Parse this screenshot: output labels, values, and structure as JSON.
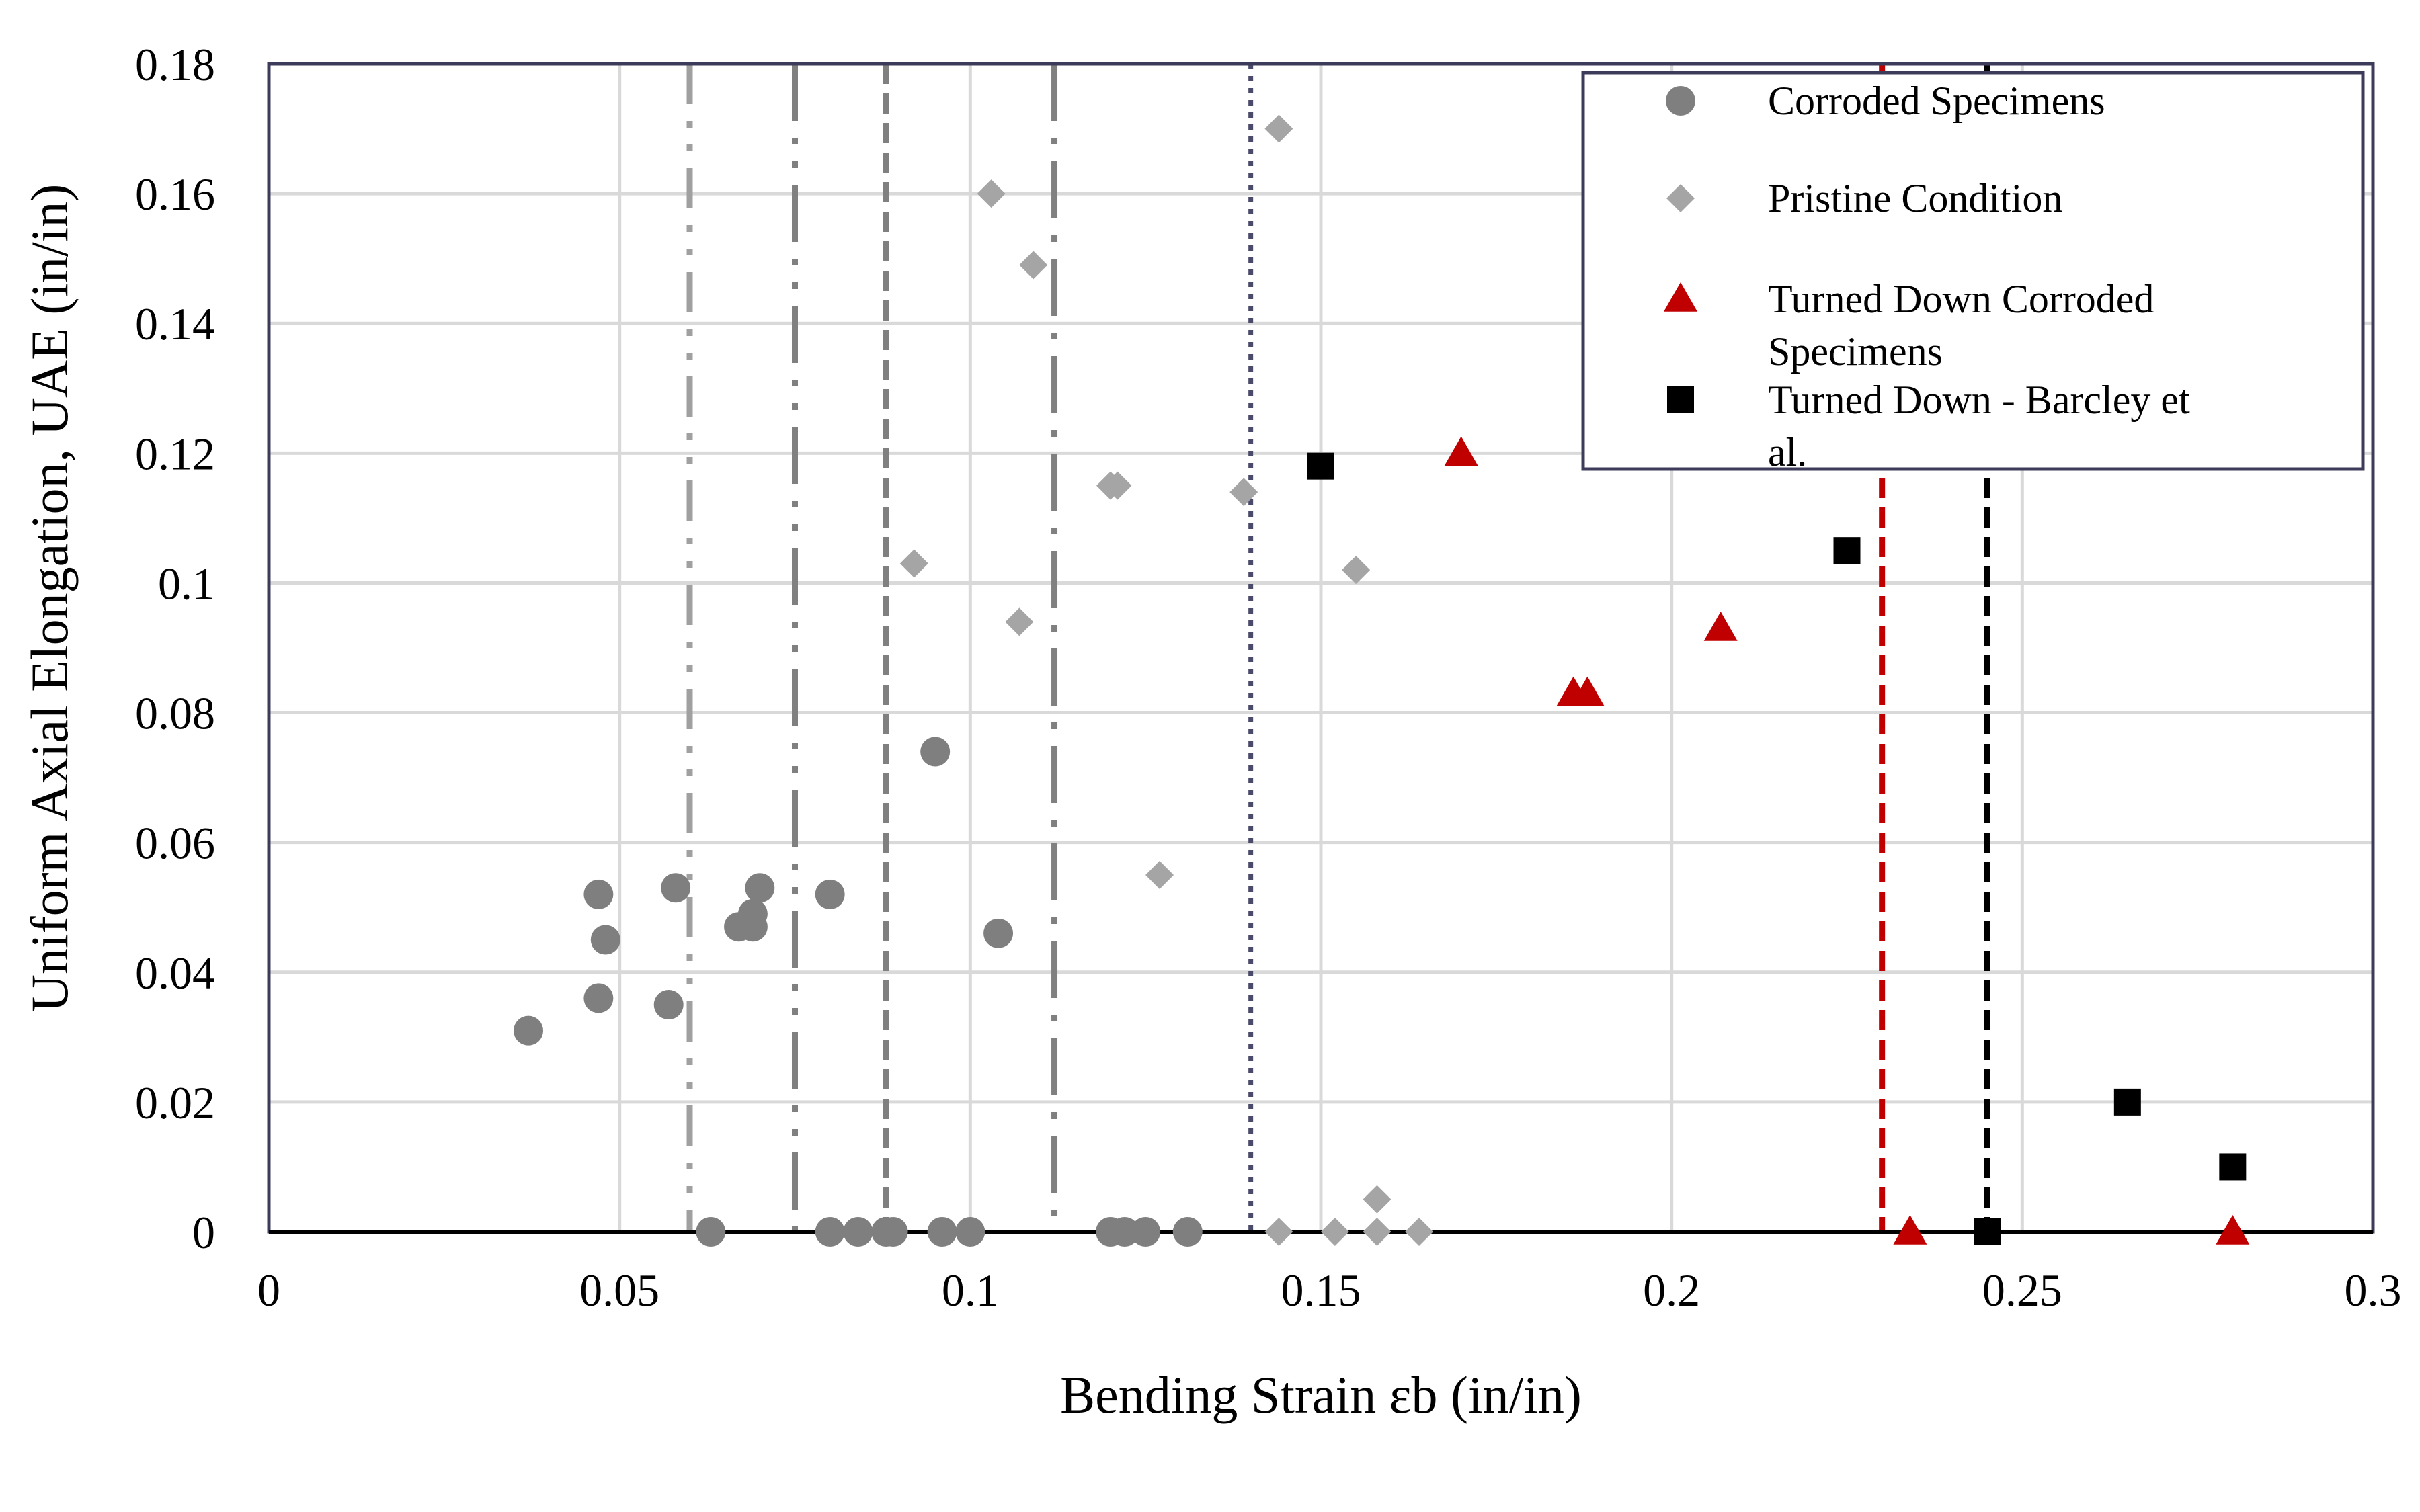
{
  "chart_data": {
    "type": "scatter",
    "xlabel": "Bending Strain εb (in/in)",
    "ylabel": "Uniform Axial Elongation, UAE (in/in)",
    "xlim": [
      0,
      0.3
    ],
    "ylim": [
      0,
      0.18
    ],
    "x_ticks": [
      "0",
      "0.05",
      "0.1",
      "0.15",
      "0.2",
      "0.25",
      "0.3"
    ],
    "y_ticks": [
      "0",
      "0.02",
      "0.04",
      "0.06",
      "0.08",
      "0.1",
      "0.12",
      "0.14",
      "0.16",
      "0.18"
    ],
    "grid": true,
    "legend_position": "top-right",
    "series": [
      {
        "name": "Corroded Specimens",
        "marker": "circle",
        "color": "#7f7f7f",
        "points": [
          [
            0.037,
            0.031
          ],
          [
            0.047,
            0.052
          ],
          [
            0.047,
            0.036
          ],
          [
            0.048,
            0.045
          ],
          [
            0.057,
            0.035
          ],
          [
            0.058,
            0.053
          ],
          [
            0.067,
            0.047
          ],
          [
            0.069,
            0.049
          ],
          [
            0.069,
            0.047
          ],
          [
            0.07,
            0.053
          ],
          [
            0.08,
            0.052
          ],
          [
            0.095,
            0.074
          ],
          [
            0.104,
            0.046
          ],
          [
            0.063,
            0.0
          ],
          [
            0.08,
            0.0
          ],
          [
            0.084,
            0.0
          ],
          [
            0.088,
            0.0
          ],
          [
            0.089,
            0.0
          ],
          [
            0.096,
            0.0
          ],
          [
            0.1,
            0.0
          ],
          [
            0.12,
            0.0
          ],
          [
            0.122,
            0.0
          ],
          [
            0.125,
            0.0
          ],
          [
            0.131,
            0.0
          ]
        ]
      },
      {
        "name": "Pristine Condition",
        "marker": "diamond",
        "color": "#a5a5a5",
        "points": [
          [
            0.092,
            0.103
          ],
          [
            0.103,
            0.16
          ],
          [
            0.107,
            0.094
          ],
          [
            0.109,
            0.149
          ],
          [
            0.12,
            0.115
          ],
          [
            0.121,
            0.115
          ],
          [
            0.127,
            0.055
          ],
          [
            0.139,
            0.114
          ],
          [
            0.144,
            0.17
          ],
          [
            0.155,
            0.102
          ],
          [
            0.158,
            0.005
          ],
          [
            0.144,
            0.0
          ],
          [
            0.152,
            0.0
          ],
          [
            0.158,
            0.0
          ],
          [
            0.164,
            0.0
          ]
        ]
      },
      {
        "name": "Turned Down Corroded Specimens",
        "marker": "triangle",
        "color": "#c00000",
        "points": [
          [
            0.17,
            0.12
          ],
          [
            0.186,
            0.083
          ],
          [
            0.188,
            0.083
          ],
          [
            0.207,
            0.093
          ],
          [
            0.234,
            0.0
          ],
          [
            0.28,
            0.0
          ]
        ]
      },
      {
        "name": "Turned Down - Barcley et al.",
        "marker": "square",
        "color": "#000000",
        "points": [
          [
            0.15,
            0.118
          ],
          [
            0.225,
            0.105
          ],
          [
            0.245,
            0.0
          ],
          [
            0.265,
            0.02
          ],
          [
            0.28,
            0.01
          ]
        ]
      }
    ],
    "vertical_lines": [
      {
        "x": 0.06,
        "style": "dash-dot-dot",
        "color": "#a0a0a0"
      },
      {
        "x": 0.075,
        "style": "long-dash-dot-dot",
        "color": "#808080"
      },
      {
        "x": 0.088,
        "style": "dash",
        "color": "#808080"
      },
      {
        "x": 0.112,
        "style": "long-dash-dot",
        "color": "#808080"
      },
      {
        "x": 0.14,
        "style": "dot",
        "color": "#4a4a6a"
      },
      {
        "x": 0.23,
        "style": "dash",
        "color": "#c00000"
      },
      {
        "x": 0.245,
        "style": "dash",
        "color": "#000000"
      }
    ]
  }
}
